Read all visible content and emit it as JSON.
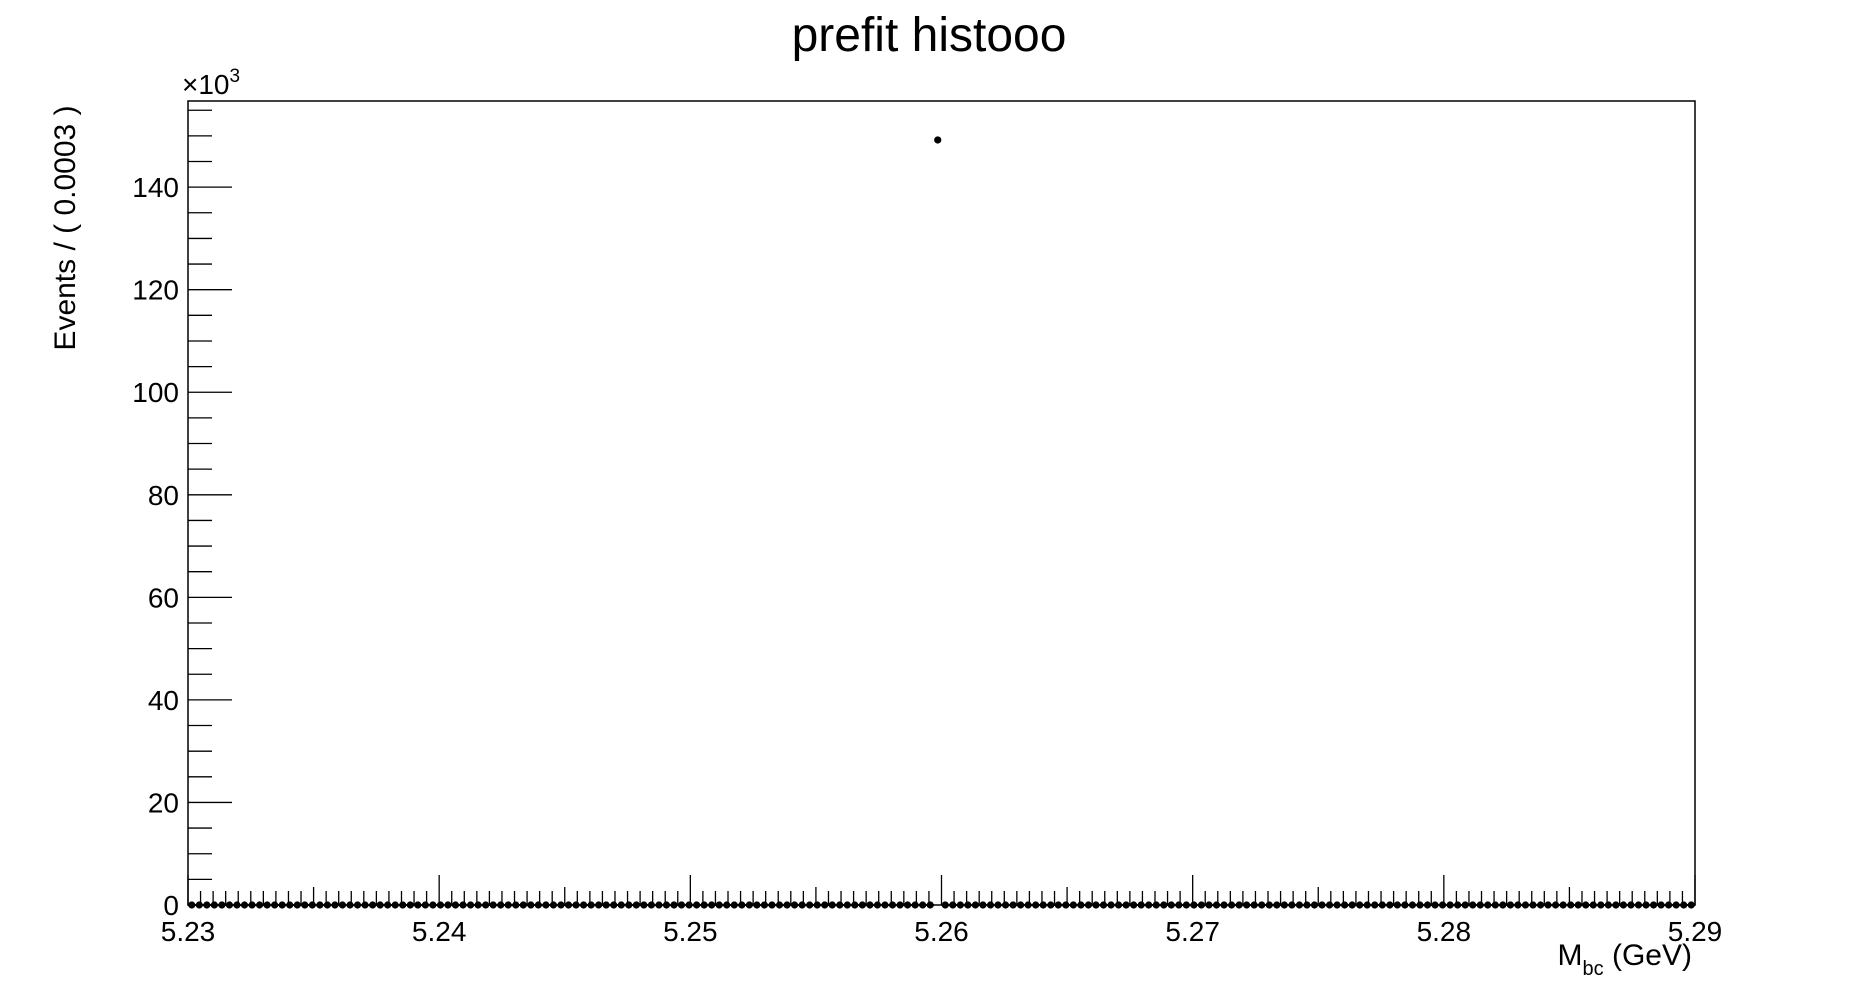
{
  "chart_data": {
    "type": "scatter",
    "title": "prefit histooo",
    "xlabel": {
      "main": "M",
      "sub": "bc",
      "rest": " (GeV)"
    },
    "ylabel": "Events / ( 0.0003 )",
    "y_exponent": {
      "base": "×10",
      "power": "3"
    },
    "xlim": [
      5.23,
      5.29
    ],
    "ylim": [
      0,
      156.8
    ],
    "x_ticks": [
      "5.23",
      "5.24",
      "5.25",
      "5.26",
      "5.27",
      "5.28",
      "5.29"
    ],
    "y_ticks": [
      "0",
      "20",
      "40",
      "60",
      "80",
      "100",
      "120",
      "140"
    ],
    "grid": false,
    "bin_width": 0.0003,
    "n_bins": 200,
    "peak": {
      "x": 5.25985,
      "y": 149.2
    },
    "baseline_y": 0,
    "marker_color": "#000000"
  }
}
